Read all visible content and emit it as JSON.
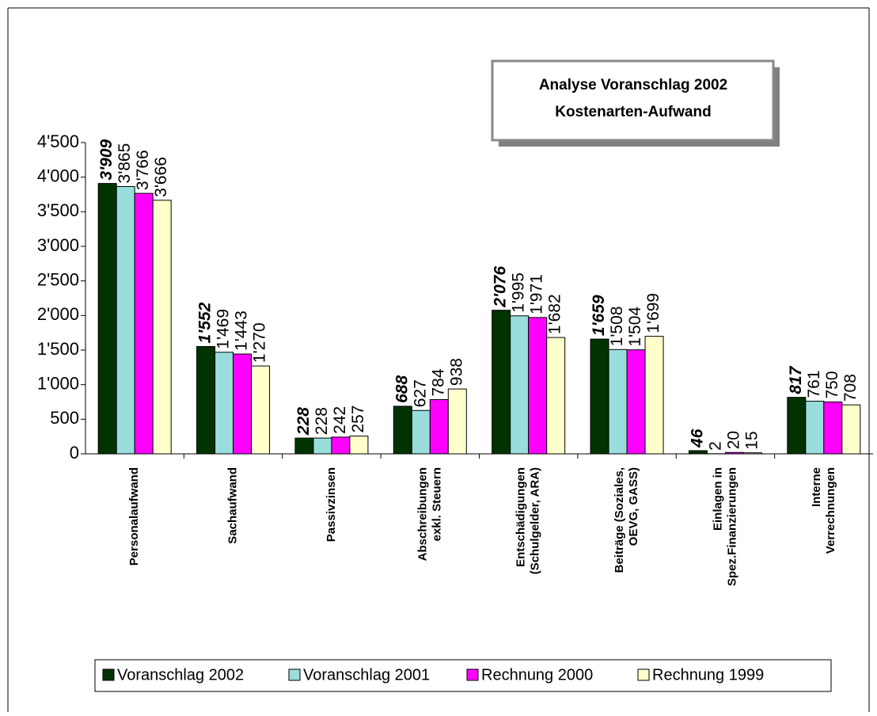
{
  "chart_data": {
    "type": "bar",
    "title": "Analyse Voranschlag 2002",
    "subtitle": "Kostenarten-Aufwand",
    "categories": [
      "Personalaufwand",
      "Sachaufwand",
      "Passivzinsen",
      "Abschreibungen\nexkl. Steuern",
      "Entschädigungen\n(Schulgelder, ARA)",
      "Beiträge (Soziales,\nOEVG, GASS)",
      "Einlagen in\nSpez.Finanzierungen",
      "Interne\nVerrechnungen"
    ],
    "series": [
      {
        "name": "Voranschlag 2002",
        "color": "#003300",
        "values": [
          3909,
          1552,
          228,
          688,
          2076,
          1659,
          46,
          817
        ],
        "value_labels": [
          "3'909",
          "1'552",
          "228",
          "688",
          "2'076",
          "1'659",
          "46",
          "817"
        ]
      },
      {
        "name": "Voranschlag 2001",
        "color": "#99dddd",
        "values": [
          3865,
          1469,
          228,
          627,
          1995,
          1508,
          2,
          761
        ],
        "value_labels": [
          "3'865",
          "1'469",
          "228",
          "627",
          "1'995",
          "1'508",
          "2",
          "761"
        ]
      },
      {
        "name": "Rechnung 2000",
        "color": "#ff00ff",
        "values": [
          3766,
          1443,
          242,
          784,
          1971,
          1504,
          20,
          750
        ],
        "value_labels": [
          "3'766",
          "1'443",
          "242",
          "784",
          "1'971",
          "1'504",
          "20",
          "750"
        ]
      },
      {
        "name": "Rechnung 1999",
        "color": "#ffffcc",
        "values": [
          3666,
          1270,
          257,
          938,
          1682,
          1699,
          15,
          708
        ],
        "value_labels": [
          "3'666",
          "1'270",
          "257",
          "938",
          "1'682",
          "1'699",
          "15",
          "708"
        ]
      }
    ],
    "ylim": [
      0,
      4500
    ],
    "yticks": [
      0,
      500,
      {
        "value": 1000,
        "label": "1'000"
      },
      {
        "value": 1500,
        "label": "1'500"
      },
      {
        "value": 2000,
        "label": "2'000"
      },
      {
        "value": 2500,
        "label": "2'500"
      },
      {
        "value": 3000,
        "label": "3'000"
      },
      {
        "value": 3500,
        "label": "3'500"
      },
      {
        "value": 4000,
        "label": "4'000"
      },
      {
        "value": 4500,
        "label": "4'500"
      }
    ],
    "grid": false,
    "legend": "bottom"
  }
}
